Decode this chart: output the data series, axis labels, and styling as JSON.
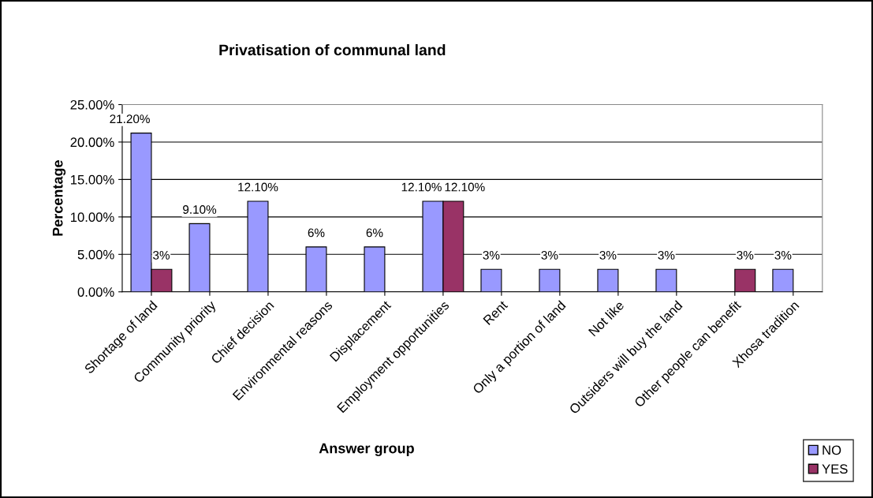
{
  "chart_data": {
    "type": "bar",
    "title": "Privatisation of communal land",
    "xlabel": "Answer group",
    "ylabel": "Percentage",
    "categories": [
      "Shortage of land",
      "Community priority",
      "Chief decision",
      "Environmental reasons",
      "Displacement",
      "Employment opportunities",
      "Rent",
      "Only a portion of land",
      "Not like",
      "Outsiders will buy the land",
      "Other people can benefit",
      "Xhosa tradition"
    ],
    "series": [
      {
        "name": "NO",
        "color": "#9999ff",
        "values": [
          21.2,
          9.1,
          12.1,
          6,
          6,
          12.1,
          3,
          3,
          3,
          3,
          null,
          3
        ],
        "value_labels": [
          "21.20%",
          "9.10%",
          "12.10%",
          "6%",
          "6%",
          "12.10%",
          "3%",
          "3%",
          "3%",
          "3%",
          null,
          "3%"
        ]
      },
      {
        "name": "YES",
        "color": "#993366",
        "values": [
          3,
          null,
          null,
          null,
          null,
          12.1,
          null,
          null,
          null,
          null,
          3,
          null
        ],
        "value_labels": [
          "3%",
          null,
          null,
          null,
          null,
          "12.10%",
          null,
          null,
          null,
          null,
          "3%",
          null
        ]
      }
    ],
    "ylim": [
      0,
      25
    ],
    "yticks": [
      {
        "value": 0,
        "label": "0.00%"
      },
      {
        "value": 5,
        "label": "5.00%"
      },
      {
        "value": 10,
        "label": "10.00%"
      },
      {
        "value": 15,
        "label": "15.00%"
      },
      {
        "value": 20,
        "label": "20.00%"
      },
      {
        "value": 25,
        "label": "25.00%"
      }
    ],
    "grid": "y",
    "legend": "bottom right"
  }
}
